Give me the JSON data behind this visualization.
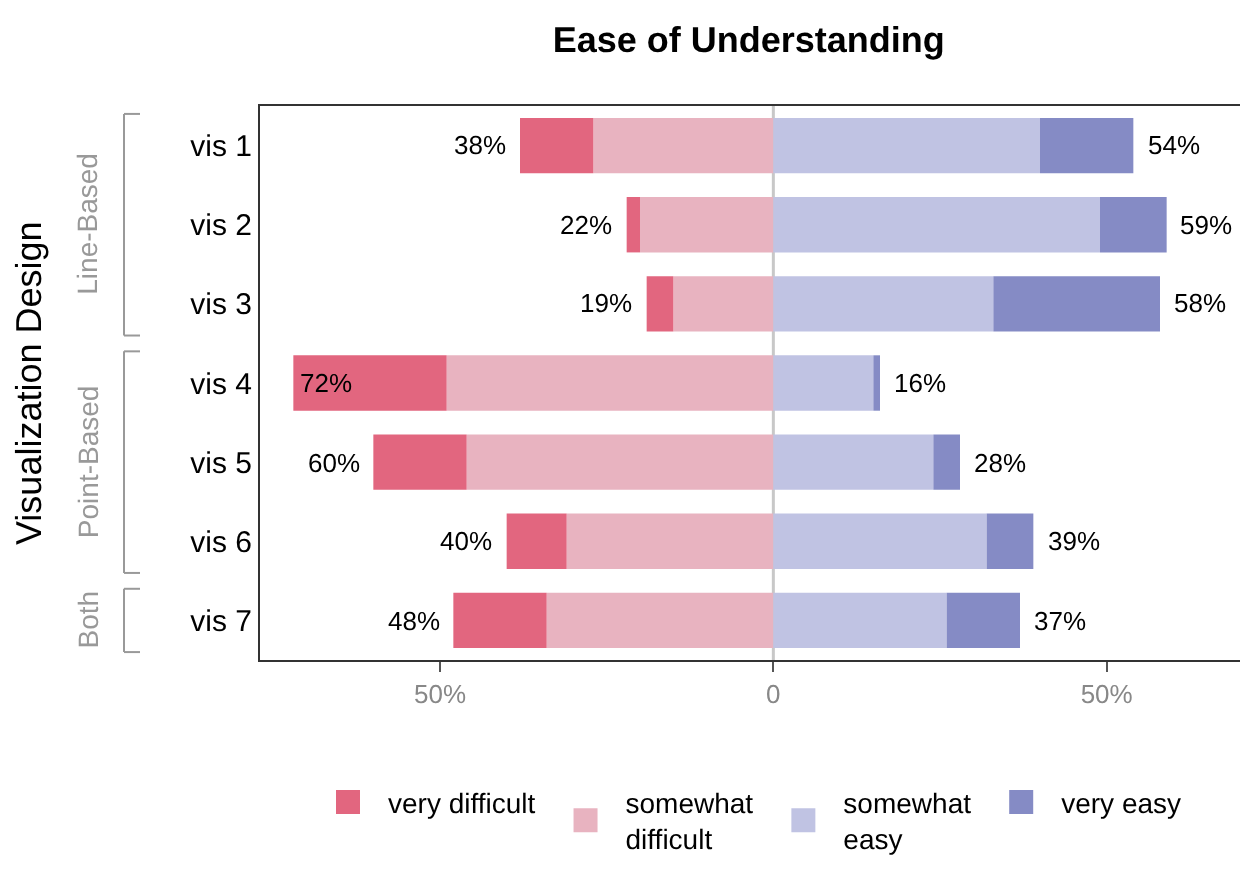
{
  "chart_data": {
    "type": "bar",
    "orientation": "horizontal",
    "stacked": true,
    "title": "Ease of Understanding",
    "ylabel": "Visualization Design",
    "categories": [
      "vis 1",
      "vis 2",
      "vis 3",
      "vis 4",
      "vis 5",
      "vis 6",
      "vis 7"
    ],
    "series": [
      {
        "name": "somewhat\ndifficult",
        "color": "#e8b3c0",
        "values": [
          -27,
          -20,
          -15,
          -49,
          -46,
          -31,
          -34
        ]
      },
      {
        "name": "very difficult",
        "color": "#e2667f",
        "values": [
          -11,
          -2,
          -4,
          -23,
          -14,
          -9,
          -14
        ]
      },
      {
        "name": "somewhat\neasy",
        "color": "#c0c3e3",
        "values": [
          40,
          49,
          33,
          15,
          24,
          32,
          26
        ]
      },
      {
        "name": "very easy",
        "color": "#858bc5",
        "values": [
          14,
          10,
          25,
          1,
          4,
          7,
          11
        ]
      }
    ],
    "totals": [
      [
        "38%",
        "54%"
      ],
      [
        "22%",
        "59%"
      ],
      [
        "19%",
        "58%"
      ],
      [
        "72%",
        "16%"
      ],
      [
        "60%",
        "28%"
      ],
      [
        "40%",
        "39%"
      ],
      [
        "48%",
        "37%"
      ]
    ],
    "annotations": [
      "Line-Based",
      "Point-Based",
      "Both"
    ],
    "ref_lines": [
      {
        "axis": "x",
        "value": 0,
        "color": "#c8c8c8"
      }
    ],
    "xlim": [
      -77,
      70
    ],
    "xticks": [
      {
        "value": -50,
        "label": "50%"
      },
      0,
      {
        "value": 50,
        "label": "50%"
      }
    ],
    "grid": false,
    "legend": "bottom"
  }
}
